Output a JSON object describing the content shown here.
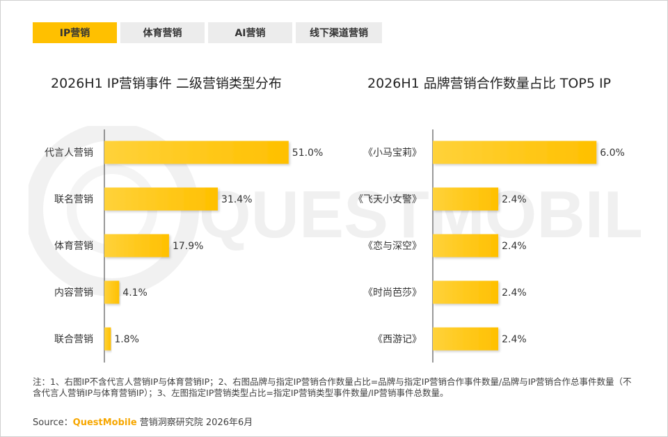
{
  "tabs": [
    {
      "label": "IP营销",
      "active": true
    },
    {
      "label": "体育营销",
      "active": false
    },
    {
      "label": "AI营销",
      "active": false
    },
    {
      "label": "线下渠道营销",
      "active": false
    }
  ],
  "watermark": "QUESTMOBILE",
  "chart_data": [
    {
      "type": "bar",
      "orientation": "horizontal",
      "title": "2026H1 IP营销事件 二级营销类型分布",
      "categories": [
        "代言人营销",
        "联名营销",
        "体育营销",
        "内容营销",
        "联合营销"
      ],
      "values": [
        51.0,
        31.4,
        17.9,
        4.1,
        1.8
      ],
      "value_labels": [
        "51.0%",
        "31.4%",
        "17.9%",
        "4.1%",
        "1.8%"
      ],
      "xlim": [
        0,
        52
      ],
      "grid": false,
      "color": "#ffc000"
    },
    {
      "type": "bar",
      "orientation": "horizontal",
      "title": "2026H1 品牌营销合作数量占比 TOP5 IP",
      "categories": [
        "《小马宝莉》",
        "《飞天小女警》",
        "《恋与深空》",
        "《时尚芭莎》",
        "《西游记》"
      ],
      "values": [
        6.0,
        2.4,
        2.4,
        2.4,
        2.4
      ],
      "value_labels": [
        "6.0%",
        "2.4%",
        "2.4%",
        "2.4%",
        "2.4%"
      ],
      "xlim": [
        0,
        6.3
      ],
      "grid": false,
      "color": "#ffc000"
    }
  ],
  "notes": "注：1、右图IP不含代言人营销IP与体育营销IP；2、右图品牌与指定IP营销合作数量占比=品牌与指定IP营销合作事件数量/品牌与IP营销合作总事件数量（不含代言人营销IP与体育营销IP）；3、左图指定IP营销类型占比=指定IP营销类型事件数量/IP营销事件总数量。",
  "source": {
    "prefix": "Source：",
    "brand": "QuestMobile",
    "suffix": " 营销洞察研究院 2026年6月"
  }
}
